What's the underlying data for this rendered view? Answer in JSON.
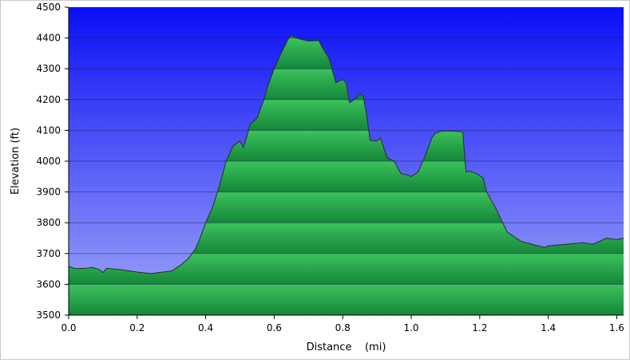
{
  "chart_data": {
    "type": "area",
    "xlabel": "Distance    (mi)",
    "ylabel": "Elevation (ft)",
    "xlim": [
      0,
      1.62
    ],
    "ylim": [
      3500,
      4500
    ],
    "x_ticks": [
      "0.0",
      "0.2",
      "0.4",
      "0.6",
      "0.8",
      "1.0",
      "1.2",
      "1.4",
      "1.6"
    ],
    "y_ticks": [
      "3500",
      "3600",
      "3700",
      "3800",
      "3900",
      "4000",
      "4100",
      "4200",
      "4300",
      "4400",
      "4500"
    ],
    "grid": true,
    "colors": {
      "sky_top": "#0a10f5",
      "sky_bottom": "#a0a8f8",
      "fill_light": "#3cc25c",
      "fill_dark": "#15863a",
      "outline": "#2b2b2b"
    },
    "series": [
      {
        "x": [
          0.0,
          0.02,
          0.05,
          0.07,
          0.09,
          0.1,
          0.11,
          0.15,
          0.2,
          0.24,
          0.26,
          0.3,
          0.31,
          0.33,
          0.35,
          0.37,
          0.38,
          0.4,
          0.42,
          0.44,
          0.46,
          0.48,
          0.5,
          0.51,
          0.52,
          0.53,
          0.55,
          0.57,
          0.58,
          0.6,
          0.62,
          0.64,
          0.65,
          0.66,
          0.68,
          0.7,
          0.73,
          0.74,
          0.76,
          0.77,
          0.78,
          0.8,
          0.81,
          0.82,
          0.84,
          0.85,
          0.86,
          0.87,
          0.88,
          0.9,
          0.91,
          0.93,
          0.95,
          0.97,
          0.99,
          1.0,
          1.02,
          1.04,
          1.06,
          1.07,
          1.09,
          1.12,
          1.15,
          1.16,
          1.17,
          1.19,
          1.21,
          1.22,
          1.25,
          1.28,
          1.32,
          1.36,
          1.39,
          1.4,
          1.45,
          1.5,
          1.53,
          1.55,
          1.57,
          1.6,
          1.62
        ],
        "y": [
          3658,
          3651,
          3652,
          3655,
          3648,
          3638,
          3652,
          3648,
          3640,
          3635,
          3638,
          3643,
          3650,
          3665,
          3685,
          3715,
          3740,
          3800,
          3850,
          3920,
          4000,
          4050,
          4065,
          4045,
          4080,
          4120,
          4140,
          4200,
          4240,
          4300,
          4350,
          4395,
          4410,
          4402,
          4395,
          4390,
          4392,
          4370,
          4335,
          4295,
          4255,
          4265,
          4255,
          4190,
          4205,
          4220,
          4210,
          4150,
          4068,
          4065,
          4075,
          4010,
          4000,
          3960,
          3955,
          3950,
          3965,
          4015,
          4075,
          4090,
          4098,
          4098,
          4095,
          3965,
          3968,
          3960,
          3945,
          3900,
          3840,
          3770,
          3740,
          3728,
          3720,
          3725,
          3730,
          3735,
          3730,
          3740,
          3750,
          3745,
          3750
        ]
      }
    ]
  }
}
